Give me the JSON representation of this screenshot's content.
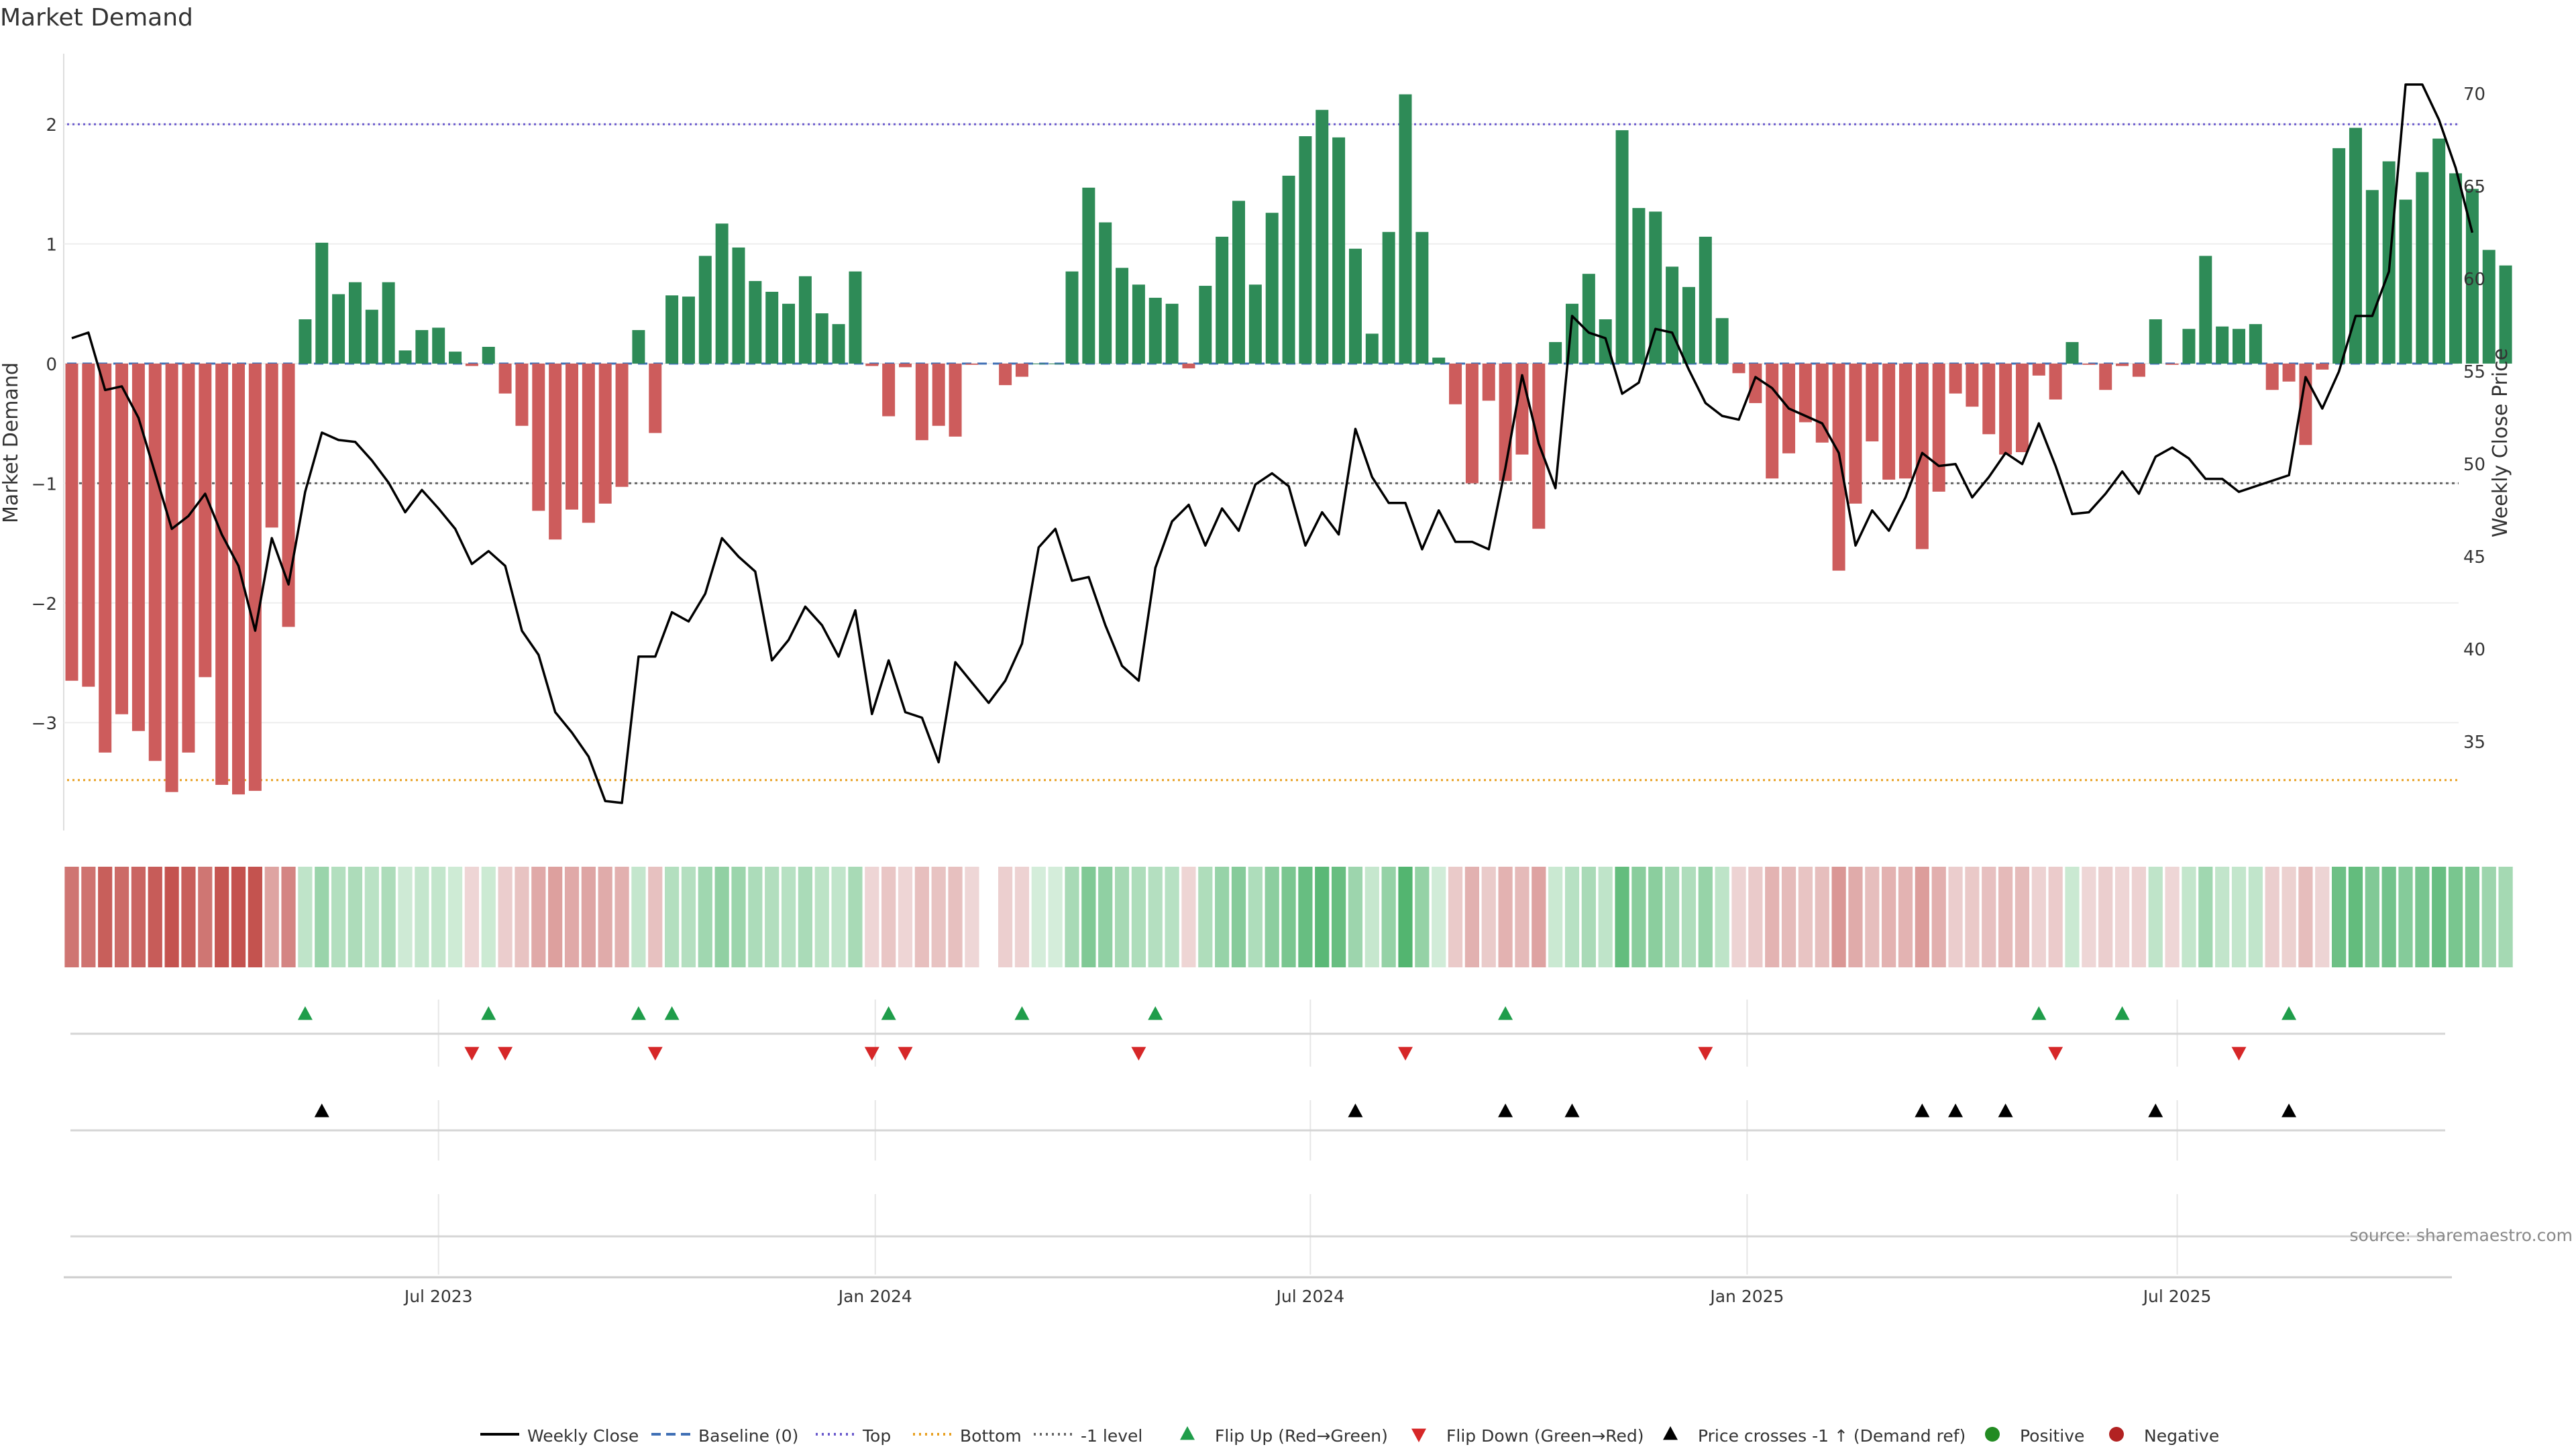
{
  "title": "Market Demand",
  "source": "source: sharemaestro.com",
  "colors": {
    "positive": "#2e8b57",
    "negative": "#cd5c5c",
    "price": "#000000",
    "top": "#6a5acd",
    "bottom": "#e8a020",
    "minus_one": "#666666",
    "baseline": "#3f6fb5",
    "flip_up": "#1f9d4a",
    "flip_down": "#d62728",
    "cross": "#000000"
  },
  "legend": [
    {
      "label": "Weekly Close",
      "kind": "line-solid",
      "color": "#000000"
    },
    {
      "label": "Baseline (0)",
      "kind": "line-dash",
      "color": "#3f6fb5"
    },
    {
      "label": "Top",
      "kind": "line-dot",
      "color": "#6a5acd"
    },
    {
      "label": "Bottom",
      "kind": "line-dot",
      "color": "#e8a020"
    },
    {
      "label": "-1 level",
      "kind": "line-dot",
      "color": "#666666"
    },
    {
      "label": "Flip Up (Red→Green)",
      "kind": "tri-up",
      "color": "#1f9d4a"
    },
    {
      "label": "Flip Down (Green→Red)",
      "kind": "tri-down",
      "color": "#d62728"
    },
    {
      "label": "Price crosses -1 ↑ (Demand ref)",
      "kind": "tri-up",
      "color": "#000000"
    },
    {
      "label": "Positive",
      "kind": "dot",
      "color": "#228b22"
    },
    {
      "label": "Negative",
      "kind": "dot",
      "color": "#b22222"
    }
  ],
  "chart_data": {
    "type": "bar",
    "title": "Market Demand",
    "ylabel": "Market Demand",
    "y2label": "Weekly Close Price",
    "ylim": [
      -3.95,
      2.55
    ],
    "y2lim": [
      30.5,
      73.8
    ],
    "yticks": [
      -3,
      -2,
      -1,
      0,
      1,
      2
    ],
    "yticklabels": [
      "−3",
      "−2",
      "−1",
      "0",
      "1",
      "2"
    ],
    "y2ticks": [
      35,
      40,
      45,
      50,
      55,
      60,
      65,
      70
    ],
    "xticks": [
      {
        "week": 22,
        "label": "Jul 2023"
      },
      {
        "week": 48.2,
        "label": "Jan 2024"
      },
      {
        "week": 74.3,
        "label": "Jul 2024"
      },
      {
        "week": 100.5,
        "label": "Jan 2025"
      },
      {
        "week": 126.3,
        "label": "Jul 2025"
      }
    ],
    "levels": {
      "top": 2.0,
      "bottom": -3.48,
      "minus_one": -1.0,
      "baseline": 0.0
    },
    "demand": [
      -2.65,
      -2.7,
      -3.25,
      -2.93,
      -3.07,
      -3.32,
      -3.58,
      -3.25,
      -2.62,
      -3.52,
      -3.6,
      -3.57,
      -1.37,
      -2.2,
      0.37,
      1.01,
      0.58,
      0.68,
      0.45,
      0.68,
      0.11,
      0.28,
      0.3,
      0.1,
      -0.02,
      0.14,
      -0.25,
      -0.52,
      -1.23,
      -1.47,
      -1.22,
      -1.33,
      -1.17,
      -1.03,
      0.28,
      -0.58,
      0.57,
      0.56,
      0.9,
      1.17,
      0.97,
      0.69,
      0.6,
      0.5,
      0.73,
      0.42,
      0.33,
      0.77,
      -0.02,
      -0.44,
      -0.03,
      -0.64,
      -0.52,
      -0.61,
      -0.01,
      null,
      -0.18,
      -0.11,
      0.0,
      0.0,
      0.77,
      1.47,
      1.18,
      0.8,
      0.66,
      0.55,
      0.5,
      -0.04,
      0.65,
      1.06,
      1.36,
      0.66,
      1.26,
      1.57,
      1.9,
      2.12,
      1.89,
      0.96,
      0.25,
      1.1,
      2.25,
      1.1,
      0.05,
      -0.34,
      -1.0,
      -0.31,
      -0.98,
      -0.76,
      -1.38,
      0.18,
      0.5,
      0.75,
      0.37,
      1.95,
      1.3,
      1.27,
      0.81,
      0.64,
      1.06,
      0.38,
      -0.08,
      -0.33,
      -0.96,
      -0.75,
      -0.49,
      -0.66,
      -1.73,
      -1.17,
      -0.65,
      -0.97,
      -0.96,
      -1.55,
      -1.07,
      -0.25,
      -0.36,
      -0.59,
      -0.76,
      -0.74,
      -0.1,
      -0.3,
      0.18,
      -0.01,
      -0.22,
      -0.02,
      -0.11,
      0.37,
      -0.01,
      0.29,
      0.9,
      0.31,
      0.29,
      0.33,
      -0.22,
      -0.15,
      -0.68,
      -0.05,
      1.8,
      1.97,
      1.45,
      1.69,
      1.37,
      1.6,
      1.88,
      1.59,
      1.46,
      0.95,
      0.82
    ],
    "weekly_close": [
      56.8,
      57.1,
      54.0,
      54.2,
      52.5,
      49.5,
      46.5,
      47.2,
      48.4,
      46.2,
      44.5,
      41.0,
      46.0,
      43.5,
      48.5,
      51.7,
      51.3,
      51.2,
      50.2,
      49.0,
      47.4,
      48.6,
      47.6,
      46.5,
      44.6,
      45.3,
      44.5,
      41.0,
      39.7,
      36.6,
      35.5,
      34.2,
      31.8,
      31.7,
      39.6,
      39.6,
      42.0,
      41.5,
      43.0,
      46.0,
      45.0,
      44.2,
      39.4,
      40.5,
      42.3,
      41.3,
      39.6,
      42.1,
      36.5,
      39.4,
      36.6,
      36.3,
      33.9,
      39.3,
      38.2,
      37.1,
      38.3,
      40.3,
      45.5,
      46.5,
      43.7,
      43.9,
      41.3,
      39.1,
      38.3,
      44.4,
      46.9,
      47.8,
      45.6,
      47.6,
      46.4,
      48.9,
      49.5,
      48.8,
      45.6,
      47.4,
      46.2,
      51.9,
      49.3,
      47.9,
      47.9,
      45.4,
      47.5,
      45.8,
      45.8,
      45.4,
      49.8,
      54.8,
      51.1,
      48.7,
      58.0,
      57.1,
      56.8,
      53.8,
      54.4,
      57.3,
      57.1,
      55.1,
      53.3,
      52.6,
      52.4,
      54.7,
      54.1,
      53.0,
      52.6,
      52.2,
      50.6,
      45.6,
      47.5,
      46.4,
      48.2,
      50.6,
      49.9,
      50.0,
      48.2,
      49.3,
      50.6,
      50.0,
      52.2,
      49.9,
      47.3,
      47.4,
      48.4,
      49.6,
      48.4,
      50.4,
      50.9,
      50.3,
      49.2,
      49.2,
      48.5,
      48.8,
      49.1,
      49.4,
      54.7,
      53.0,
      55.0,
      58.0,
      58.0,
      60.4,
      70.5,
      70.5,
      68.6,
      66.0,
      62.5
    ],
    "flip_up_weeks": [
      14,
      25,
      34,
      36,
      49,
      57,
      65,
      86,
      118,
      123,
      133
    ],
    "flip_down_weeks": [
      24,
      26,
      35,
      48,
      50,
      64,
      80,
      98,
      119,
      130
    ],
    "price_cross_weeks": [
      15,
      77,
      86,
      90,
      111,
      113,
      116,
      125,
      133
    ]
  }
}
